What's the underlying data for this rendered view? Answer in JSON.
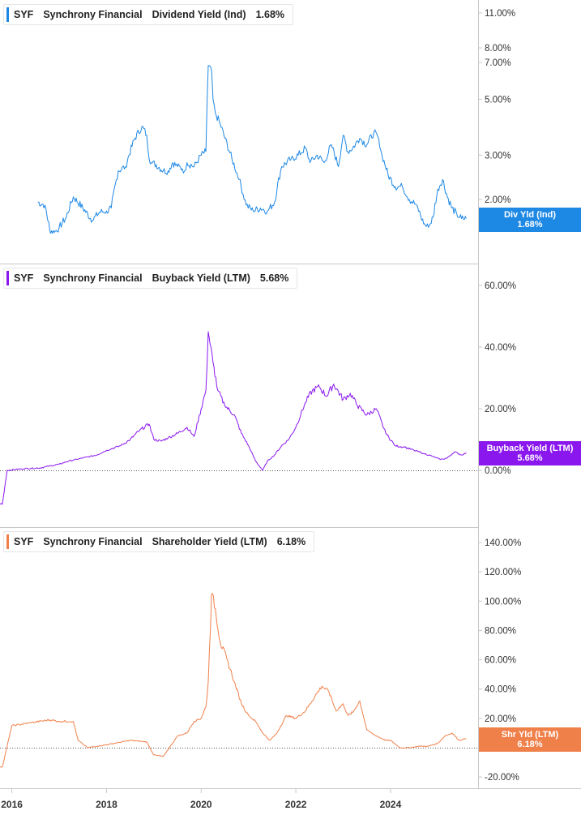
{
  "colors": {
    "dividend": "#1e88e5",
    "buyback": "#8a18ee",
    "shareholder": "#f0804a",
    "divider": "#c8c8c8",
    "axis_text": "#333333",
    "zero_line": "#555555"
  },
  "x_axis": {
    "ticks": [
      "2016",
      "2018",
      "2020",
      "2022",
      "2024"
    ]
  },
  "panels": [
    {
      "ticker": "SYF",
      "company": "Synchrony Financial",
      "metric": "Dividend Yield (Ind)",
      "value": "1.68%",
      "tag_label": "Div Yld (Ind)",
      "tag_value": "1.68%",
      "y_ticks": [
        "11.00%",
        "8.00%",
        "7.00%",
        "5.00%",
        "3.00%",
        "2.00%"
      ]
    },
    {
      "ticker": "SYF",
      "company": "Synchrony Financial",
      "metric": "Buyback Yield (LTM)",
      "value": "5.68%",
      "tag_label": "Buyback Yield (LTM)",
      "tag_value": "5.68%",
      "y_ticks": [
        "60.00%",
        "40.00%",
        "20.00%",
        "0.00%"
      ]
    },
    {
      "ticker": "SYF",
      "company": "Synchrony Financial",
      "metric": "Shareholder Yield (LTM)",
      "value": "6.18%",
      "tag_label": "Shr Yld (LTM)",
      "tag_value": "6.18%",
      "y_ticks": [
        "140.00%",
        "120.00%",
        "100.00%",
        "80.00%",
        "60.00%",
        "40.00%",
        "20.00%",
        "0.00%",
        "-20.00%"
      ]
    }
  ],
  "chart_data": [
    {
      "type": "line",
      "title": "SYF Synchrony Financial Dividend Yield (Ind)",
      "y_scale": "log",
      "ylim": [
        1.3,
        12
      ],
      "series": [
        {
          "name": "Dividend Yield (Ind)",
          "x": [
            2016.55,
            2016.7,
            2016.8,
            2016.9,
            2017.0,
            2017.15,
            2017.3,
            2017.5,
            2017.7,
            2017.85,
            2018.0,
            2018.1,
            2018.25,
            2018.4,
            2018.6,
            2018.75,
            2018.85,
            2018.9,
            2018.95,
            2019.05,
            2019.2,
            2019.3,
            2019.4,
            2019.5,
            2019.6,
            2019.65,
            2019.7,
            2019.85,
            2020.0,
            2020.1,
            2020.15,
            2020.22,
            2020.25,
            2020.3,
            2020.4,
            2020.5,
            2020.65,
            2020.8,
            2020.95,
            2021.1,
            2021.25,
            2021.4,
            2021.55,
            2021.7,
            2021.9,
            2022.05,
            2022.2,
            2022.3,
            2022.45,
            2022.6,
            2022.75,
            2022.9,
            2023.0,
            2023.1,
            2023.2,
            2023.35,
            2023.5,
            2023.65,
            2023.75,
            2023.82,
            2023.95,
            2024.1,
            2024.25,
            2024.4,
            2024.55,
            2024.7,
            2024.8,
            2024.9,
            2025.0,
            2025.1,
            2025.2,
            2025.3,
            2025.4,
            2025.5,
            2025.6
          ],
          "y": [
            1.95,
            1.9,
            1.52,
            1.48,
            1.55,
            1.7,
            2.05,
            1.85,
            1.65,
            1.78,
            1.8,
            1.85,
            2.6,
            2.7,
            3.5,
            3.9,
            3.6,
            2.9,
            2.8,
            2.75,
            2.6,
            2.6,
            2.8,
            2.7,
            2.65,
            2.6,
            2.8,
            2.7,
            3.0,
            3.1,
            6.8,
            6.5,
            5.0,
            4.4,
            4.0,
            3.5,
            2.9,
            2.4,
            1.9,
            1.8,
            1.85,
            1.8,
            1.95,
            2.7,
            2.9,
            3.0,
            3.2,
            2.8,
            3.0,
            2.8,
            3.3,
            2.7,
            3.6,
            3.1,
            3.2,
            3.5,
            3.3,
            3.7,
            3.5,
            3.0,
            2.5,
            2.25,
            2.25,
            2.0,
            1.9,
            1.6,
            1.55,
            1.7,
            2.2,
            2.4,
            2.05,
            1.85,
            1.75,
            1.68,
            1.68
          ]
        }
      ]
    },
    {
      "type": "line",
      "title": "SYF Synchrony Financial Buyback Yield (LTM)",
      "ylim": [
        -15,
        65
      ],
      "series": [
        {
          "name": "Buyback Yield (LTM)",
          "x": [
            2015.75,
            2015.8,
            2015.9,
            2016.2,
            2016.6,
            2017.0,
            2017.2,
            2017.5,
            2017.8,
            2018.0,
            2018.3,
            2018.5,
            2018.7,
            2018.9,
            2019.0,
            2019.15,
            2019.3,
            2019.5,
            2019.7,
            2019.85,
            2020.0,
            2020.1,
            2020.15,
            2020.25,
            2020.35,
            2020.5,
            2020.7,
            2020.85,
            2021.0,
            2021.15,
            2021.3,
            2021.4,
            2021.55,
            2021.7,
            2021.85,
            2022.0,
            2022.2,
            2022.35,
            2022.5,
            2022.65,
            2022.8,
            2023.0,
            2023.15,
            2023.3,
            2023.5,
            2023.7,
            2023.9,
            2024.1,
            2024.3,
            2024.5,
            2024.7,
            2024.9,
            2025.05,
            2025.2,
            2025.35,
            2025.5,
            2025.6
          ],
          "y": [
            -11,
            -11,
            0,
            0.5,
            0.8,
            2.0,
            3.0,
            4.0,
            5.0,
            6.5,
            8.0,
            10.0,
            13.0,
            15.0,
            10.0,
            9.5,
            10.5,
            12.0,
            14.0,
            11.0,
            20.0,
            26.0,
            45.0,
            35.0,
            26.0,
            21.0,
            18.0,
            12.0,
            8.0,
            3.0,
            0,
            3.0,
            5.0,
            8.0,
            10.0,
            14.0,
            22.0,
            26.0,
            27.0,
            24.0,
            28.0,
            23.0,
            25.0,
            21.0,
            18.0,
            20.0,
            12.0,
            8.0,
            7.5,
            6.5,
            5.5,
            4.5,
            3.5,
            4.0,
            6.0,
            5.0,
            5.68
          ]
        }
      ]
    },
    {
      "type": "line",
      "title": "SYF Synchrony Financial Shareholder Yield (LTM)",
      "ylim": [
        -25,
        145
      ],
      "series": [
        {
          "name": "Shareholder Yield (LTM)",
          "x": [
            2015.75,
            2015.8,
            2016.0,
            2016.4,
            2016.8,
            2017.0,
            2017.3,
            2017.4,
            2017.6,
            2018.0,
            2018.5,
            2018.85,
            2019.0,
            2019.2,
            2019.5,
            2019.7,
            2019.85,
            2020.0,
            2020.1,
            2020.15,
            2020.22,
            2020.3,
            2020.4,
            2020.55,
            2020.7,
            2020.85,
            2021.0,
            2021.15,
            2021.3,
            2021.45,
            2021.6,
            2021.8,
            2022.0,
            2022.2,
            2022.4,
            2022.55,
            2022.7,
            2022.85,
            2023.0,
            2023.1,
            2023.2,
            2023.35,
            2023.5,
            2023.7,
            2023.9,
            2024.0,
            2024.2,
            2024.4,
            2024.6,
            2024.8,
            2025.0,
            2025.15,
            2025.3,
            2025.45,
            2025.6
          ],
          "y": [
            -13,
            -13,
            15,
            17,
            19,
            18,
            18,
            5,
            0,
            2,
            5,
            4,
            -5,
            -6,
            8,
            10,
            18,
            20,
            28,
            45,
            105,
            95,
            72,
            60,
            45,
            30,
            22,
            18,
            10,
            5,
            10,
            22,
            20,
            25,
            35,
            42,
            38,
            25,
            30,
            22,
            24,
            32,
            12,
            8,
            5,
            5,
            0,
            0,
            1,
            1,
            3,
            8,
            10,
            5,
            6.18
          ]
        }
      ]
    }
  ]
}
